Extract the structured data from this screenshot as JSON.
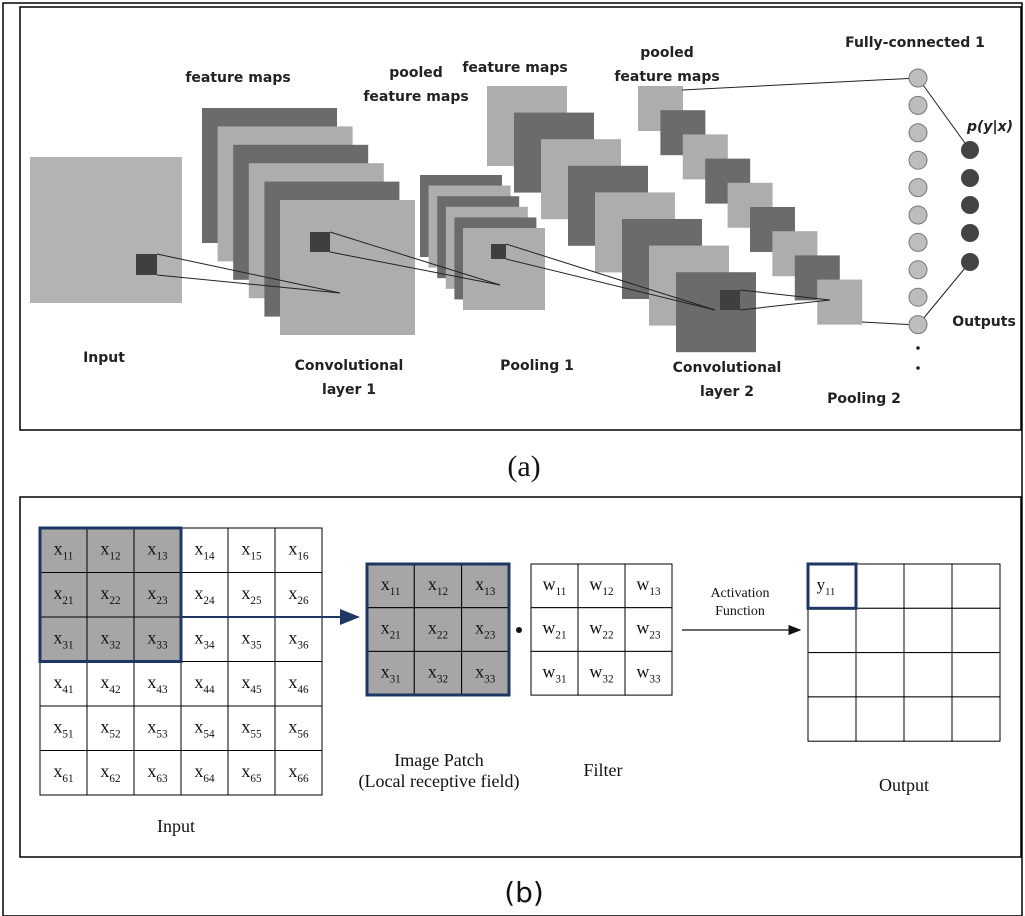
{
  "panel_a": {
    "labels": [
      [
        "feature maps"
      ],
      [
        "pooled",
        "feature maps"
      ],
      [
        "feature maps"
      ],
      [
        "pooled",
        "feature maps"
      ],
      [
        "Fully-connected 1"
      ],
      [
        "p(y|x)"
      ],
      [
        "Input"
      ],
      [
        "Convolutional",
        "layer 1"
      ],
      [
        "Pooling 1"
      ],
      [
        "Convolutional",
        "layer 2"
      ],
      [
        "Pooling 2"
      ],
      [
        "Outputs"
      ]
    ],
    "caption": "(a)"
  },
  "panel_b": {
    "input_grid": {
      "symbol": "x",
      "subscripts": [
        [
          "11",
          "12",
          "13",
          "14",
          "15",
          "16"
        ],
        [
          "21",
          "22",
          "23",
          "24",
          "25",
          "26"
        ],
        [
          "31",
          "32",
          "33",
          "34",
          "35",
          "36"
        ],
        [
          "41",
          "42",
          "43",
          "44",
          "45",
          "46"
        ],
        [
          "51",
          "52",
          "53",
          "54",
          "55",
          "56"
        ],
        [
          "61",
          "62",
          "63",
          "64",
          "65",
          "66"
        ]
      ],
      "label": "Input"
    },
    "patch": {
      "symbol": "x",
      "subscripts": [
        [
          "11",
          "12",
          "13"
        ],
        [
          "21",
          "22",
          "23"
        ],
        [
          "31",
          "32",
          "33"
        ]
      ],
      "label": [
        "Image Patch",
        "(Local receptive field)"
      ]
    },
    "filter": {
      "symbol": "w",
      "subscripts": [
        [
          "11",
          "12",
          "13"
        ],
        [
          "21",
          "22",
          "23"
        ],
        [
          "31",
          "32",
          "33"
        ]
      ],
      "label": "Filter"
    },
    "activation": [
      "Activation",
      "Function"
    ],
    "output": {
      "symbol": "y",
      "subscript": "11",
      "label": "Output"
    },
    "caption": "(b)"
  }
}
